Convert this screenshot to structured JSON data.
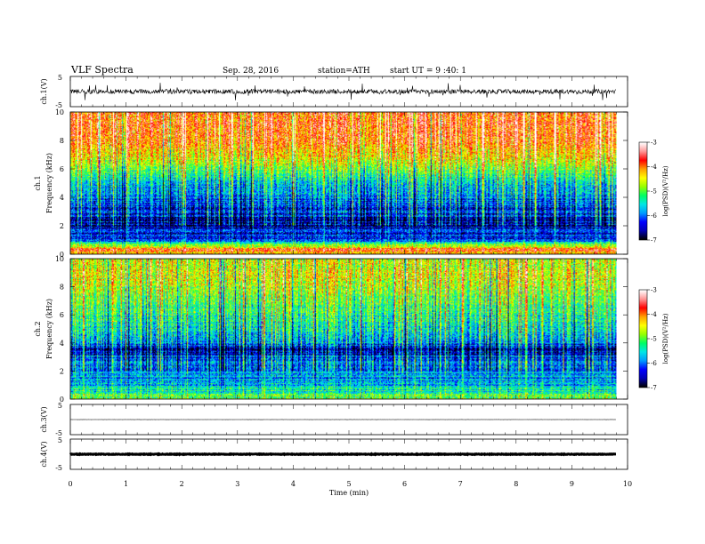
{
  "header": {
    "title": "VLF Spectra",
    "date": "Sep. 28, 2016",
    "station": "station=ATH",
    "start": "start  UT  =   9 :40: 1"
  },
  "chart_data": [
    {
      "type": "line",
      "panel": "ch1-waveform",
      "ylabel": "ch.1(V)",
      "ylim": [
        -5,
        5
      ],
      "yticks": [
        "5",
        "-5"
      ],
      "xlim": [
        0,
        10
      ],
      "data_extent_min": 9.8,
      "baseline": 0,
      "peak_amplitude": 3
    },
    {
      "type": "heatmap",
      "panel": "ch1-spectrogram",
      "ylabel_channel": "ch.1",
      "ylabel": "Frequency  (kHz)",
      "ylim": [
        0,
        10
      ],
      "yticks": [
        "0",
        "2",
        "4",
        "6",
        "8",
        "10"
      ],
      "xlim": [
        0,
        10
      ],
      "data_extent_min": 9.8,
      "color_label": "log(PSD)(V²/Hz)",
      "color_ticks": [
        "-3",
        "-4",
        "-5",
        "-6",
        "-7"
      ],
      "color_range": [
        -7,
        -3
      ],
      "intensity_profile": [
        {
          "freq_khz": 0.0,
          "level": -4.3
        },
        {
          "freq_khz": 0.3,
          "level": -3.6
        },
        {
          "freq_khz": 0.6,
          "level": -5.0
        },
        {
          "freq_khz": 1.0,
          "level": -6.2
        },
        {
          "freq_khz": 2.0,
          "level": -6.6
        },
        {
          "freq_khz": 3.0,
          "level": -6.3
        },
        {
          "freq_khz": 4.0,
          "level": -5.9
        },
        {
          "freq_khz": 5.0,
          "level": -5.6
        },
        {
          "freq_khz": 6.0,
          "level": -4.9
        },
        {
          "freq_khz": 7.0,
          "level": -4.3
        },
        {
          "freq_khz": 8.0,
          "level": -3.9
        },
        {
          "freq_khz": 9.0,
          "level": -3.8
        },
        {
          "freq_khz": 10.0,
          "level": -3.9
        }
      ]
    },
    {
      "type": "heatmap",
      "panel": "ch2-spectrogram",
      "ylabel_channel": "ch.2",
      "ylabel": "Frequency  (kHz)",
      "ylim": [
        0,
        10
      ],
      "yticks": [
        "0",
        "2",
        "4",
        "6",
        "8",
        "10"
      ],
      "xlim": [
        0,
        10
      ],
      "data_extent_min": 9.8,
      "color_label": "log(PSD)(V²/Hz)",
      "color_ticks": [
        "-3",
        "-4",
        "-5",
        "-6",
        "-7"
      ],
      "color_range": [
        -7,
        -3
      ],
      "intensity_profile": [
        {
          "freq_khz": 0.0,
          "level": -4.8
        },
        {
          "freq_khz": 0.5,
          "level": -5.3
        },
        {
          "freq_khz": 1.0,
          "level": -5.7
        },
        {
          "freq_khz": 2.0,
          "level": -5.9
        },
        {
          "freq_khz": 3.0,
          "level": -6.1
        },
        {
          "freq_khz": 3.5,
          "level": -6.6
        },
        {
          "freq_khz": 4.0,
          "level": -5.8
        },
        {
          "freq_khz": 5.0,
          "level": -5.5
        },
        {
          "freq_khz": 6.0,
          "level": -5.2
        },
        {
          "freq_khz": 7.0,
          "level": -5.0
        },
        {
          "freq_khz": 8.0,
          "level": -4.7
        },
        {
          "freq_khz": 9.0,
          "level": -4.5
        },
        {
          "freq_khz": 10.0,
          "level": -4.6
        }
      ]
    },
    {
      "type": "line",
      "panel": "ch3-waveform",
      "ylabel": "ch.3(V)",
      "ylim": [
        -5,
        5
      ],
      "yticks": [
        "5",
        "-5"
      ],
      "xlim": [
        0,
        10
      ],
      "data_extent_min": 9.8,
      "baseline": 0,
      "peak_amplitude": 0.1
    },
    {
      "type": "line",
      "panel": "ch4-waveform",
      "ylabel": "ch.4(V)",
      "ylim": [
        -5,
        5
      ],
      "yticks": [
        "5",
        "-5"
      ],
      "xlim": [
        0,
        10
      ],
      "data_extent_min": 9.8,
      "baseline": 0,
      "peak_amplitude": 0.4
    }
  ],
  "x_axis": {
    "label": "Time  (min)",
    "ticks": [
      "0",
      "1",
      "2",
      "3",
      "4",
      "5",
      "6",
      "7",
      "8",
      "9",
      "10"
    ]
  },
  "colors": {
    "colormap": [
      "#000000",
      "#0000b4",
      "#0000ff",
      "#009bff",
      "#00e6e6",
      "#00ff64",
      "#96ff00",
      "#ffff00",
      "#ffa000",
      "#ff0000",
      "#ff9696",
      "#ffffff"
    ],
    "line": "#000000"
  }
}
